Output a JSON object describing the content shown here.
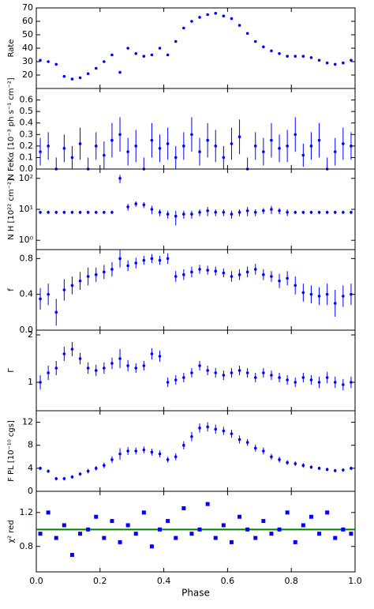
{
  "chart_data": [
    {
      "type": "scatter",
      "ylabel": "Rate",
      "color": "#0000ff",
      "marker": "circle",
      "x": [
        0.0125,
        0.0375,
        0.0625,
        0.0875,
        0.1125,
        0.1375,
        0.1625,
        0.1875,
        0.2125,
        0.2375,
        0.2625,
        0.2875,
        0.3125,
        0.3375,
        0.3625,
        0.3875,
        0.4125,
        0.4375,
        0.4625,
        0.4875,
        0.5125,
        0.5375,
        0.5625,
        0.5875,
        0.6125,
        0.6375,
        0.6625,
        0.6875,
        0.7125,
        0.7375,
        0.7625,
        0.7875,
        0.8125,
        0.8375,
        0.8625,
        0.8875,
        0.9125,
        0.9375,
        0.9625,
        0.9875
      ],
      "values": [
        31,
        30,
        28,
        19,
        17,
        18,
        21,
        25,
        30,
        35,
        22,
        40,
        36,
        34,
        35,
        40,
        35,
        45,
        55,
        60,
        63,
        65,
        66,
        64,
        62,
        57,
        51,
        45,
        41,
        38,
        36,
        34,
        34,
        34,
        33,
        31,
        29,
        28,
        29,
        31
      ],
      "xlim": [
        0,
        1
      ],
      "ylim": [
        10,
        70
      ],
      "yticks": [
        20,
        30,
        40,
        50,
        60,
        70
      ]
    },
    {
      "type": "scatter",
      "ylabel": "N FeKα [10⁻³ ph s⁻¹ cm⁻²]",
      "color": "#0000ff",
      "marker": "circle",
      "x": [
        0.0125,
        0.0375,
        0.0625,
        0.0875,
        0.1125,
        0.1375,
        0.1625,
        0.1875,
        0.2125,
        0.2375,
        0.2625,
        0.2875,
        0.3125,
        0.3375,
        0.3625,
        0.3875,
        0.4125,
        0.4375,
        0.4625,
        0.4875,
        0.5125,
        0.5375,
        0.5625,
        0.5875,
        0.6125,
        0.6375,
        0.6625,
        0.6875,
        0.7125,
        0.7375,
        0.7625,
        0.7875,
        0.8125,
        0.8375,
        0.8625,
        0.8875,
        0.9125,
        0.9375,
        0.9625,
        0.9875
      ],
      "values": [
        0.15,
        0.2,
        0.0,
        0.18,
        0.1,
        0.22,
        0.0,
        0.2,
        0.12,
        0.25,
        0.3,
        0.15,
        0.2,
        0.0,
        0.25,
        0.18,
        0.22,
        0.1,
        0.2,
        0.3,
        0.15,
        0.25,
        0.2,
        0.1,
        0.22,
        0.28,
        0.0,
        0.2,
        0.15,
        0.25,
        0.18,
        0.2,
        0.3,
        0.12,
        0.2,
        0.25,
        0.0,
        0.15,
        0.22,
        0.2
      ],
      "errors": [
        0.12,
        0.12,
        0.1,
        0.12,
        0.1,
        0.14,
        0.1,
        0.12,
        0.12,
        0.15,
        0.15,
        0.12,
        0.14,
        0.1,
        0.15,
        0.12,
        0.14,
        0.1,
        0.12,
        0.15,
        0.12,
        0.15,
        0.14,
        0.1,
        0.14,
        0.15,
        0.1,
        0.12,
        0.12,
        0.15,
        0.12,
        0.14,
        0.15,
        0.1,
        0.12,
        0.15,
        0.1,
        0.12,
        0.14,
        0.12
      ],
      "xlim": [
        0,
        1
      ],
      "ylim": [
        0,
        0.7
      ],
      "yticks": [
        {
          "value": 0,
          "label": "0.0"
        },
        0.1,
        0.2,
        0.3,
        0.4,
        0.5,
        0.6
      ]
    },
    {
      "type": "scatter",
      "ylabel": "N H [10²² cm⁻²]",
      "color": "#0000ff",
      "marker": "circle",
      "log_y": true,
      "x": [
        0.0125,
        0.0375,
        0.0625,
        0.0875,
        0.1125,
        0.1375,
        0.1625,
        0.1875,
        0.2125,
        0.2375,
        0.2625,
        0.2875,
        0.3125,
        0.3375,
        0.3625,
        0.3875,
        0.4125,
        0.4375,
        0.4625,
        0.4875,
        0.5125,
        0.5375,
        0.5625,
        0.5875,
        0.6125,
        0.6375,
        0.6625,
        0.6875,
        0.7125,
        0.7375,
        0.7625,
        0.7875,
        0.8125,
        0.8375,
        0.8625,
        0.8875,
        0.9125,
        0.9375,
        0.9625,
        0.9875
      ],
      "values": [
        8,
        8,
        8,
        8,
        8,
        8,
        8,
        8,
        8,
        8,
        100,
        12,
        15,
        14,
        10,
        8,
        7,
        6,
        7,
        7,
        8,
        9,
        8,
        8,
        7,
        8,
        9,
        8,
        9,
        10,
        9,
        8,
        8,
        8,
        8,
        8,
        8,
        8,
        8,
        8
      ],
      "errors": [
        1,
        1,
        1,
        1,
        1,
        1,
        1,
        1,
        1,
        1,
        30,
        3,
        3,
        3,
        3,
        2,
        2,
        3,
        2,
        2,
        2,
        3,
        2,
        2,
        2,
        2,
        3,
        2,
        2,
        3,
        2,
        2,
        1,
        1,
        1,
        1,
        1,
        1,
        1,
        1
      ],
      "xlim": [
        0,
        1
      ],
      "ylim": [
        0.5,
        200
      ],
      "yticks": [
        {
          "value": 1,
          "label": "10⁰"
        },
        {
          "value": 10,
          "label": "10¹"
        },
        {
          "value": 100,
          "label": "10²"
        }
      ]
    },
    {
      "type": "scatter",
      "ylabel": "f",
      "color": "#0000ff",
      "marker": "circle",
      "x": [
        0.0125,
        0.0375,
        0.0625,
        0.0875,
        0.1125,
        0.1375,
        0.1625,
        0.1875,
        0.2125,
        0.2375,
        0.2625,
        0.2875,
        0.3125,
        0.3375,
        0.3625,
        0.3875,
        0.4125,
        0.4375,
        0.4625,
        0.4875,
        0.5125,
        0.5375,
        0.5625,
        0.5875,
        0.6125,
        0.6375,
        0.6625,
        0.6875,
        0.7125,
        0.7375,
        0.7625,
        0.7875,
        0.8125,
        0.8375,
        0.8625,
        0.8875,
        0.9125,
        0.9375,
        0.9625,
        0.9875
      ],
      "values": [
        0.35,
        0.4,
        0.2,
        0.45,
        0.5,
        0.55,
        0.6,
        0.62,
        0.65,
        0.68,
        0.8,
        0.72,
        0.75,
        0.78,
        0.8,
        0.78,
        0.8,
        0.6,
        0.62,
        0.65,
        0.68,
        0.67,
        0.66,
        0.64,
        0.6,
        0.62,
        0.65,
        0.68,
        0.62,
        0.6,
        0.55,
        0.58,
        0.5,
        0.42,
        0.4,
        0.38,
        0.4,
        0.3,
        0.38,
        0.4
      ],
      "errors": [
        0.12,
        0.12,
        0.15,
        0.12,
        0.1,
        0.1,
        0.1,
        0.08,
        0.08,
        0.08,
        0.1,
        0.06,
        0.06,
        0.05,
        0.05,
        0.05,
        0.06,
        0.06,
        0.06,
        0.06,
        0.05,
        0.05,
        0.05,
        0.05,
        0.06,
        0.06,
        0.06,
        0.06,
        0.06,
        0.06,
        0.08,
        0.08,
        0.1,
        0.1,
        0.1,
        0.1,
        0.12,
        0.15,
        0.12,
        0.12
      ],
      "xlim": [
        0,
        1
      ],
      "ylim": [
        0,
        0.9
      ],
      "yticks": [
        {
          "value": 0,
          "label": "0.0"
        },
        0.4,
        0.8
      ]
    },
    {
      "type": "scatter",
      "ylabel": "Γ",
      "color": "#0000ff",
      "marker": "circle",
      "x": [
        0.0125,
        0.0375,
        0.0625,
        0.0875,
        0.1125,
        0.1375,
        0.1625,
        0.1875,
        0.2125,
        0.2375,
        0.2625,
        0.2875,
        0.3125,
        0.3375,
        0.3625,
        0.3875,
        0.4125,
        0.4375,
        0.4625,
        0.4875,
        0.5125,
        0.5375,
        0.5625,
        0.5875,
        0.6125,
        0.6375,
        0.6625,
        0.6875,
        0.7125,
        0.7375,
        0.7625,
        0.7875,
        0.8125,
        0.8375,
        0.8625,
        0.8875,
        0.9125,
        0.9375,
        0.9625,
        0.9875
      ],
      "values": [
        1.0,
        1.2,
        1.3,
        1.6,
        1.7,
        1.5,
        1.3,
        1.25,
        1.3,
        1.4,
        1.5,
        1.35,
        1.3,
        1.35,
        1.6,
        1.55,
        1.0,
        1.05,
        1.1,
        1.2,
        1.35,
        1.25,
        1.2,
        1.15,
        1.2,
        1.25,
        1.2,
        1.1,
        1.2,
        1.15,
        1.1,
        1.05,
        1.0,
        1.1,
        1.05,
        1.0,
        1.1,
        1.0,
        0.95,
        1.0
      ],
      "errors": [
        0.15,
        0.15,
        0.15,
        0.15,
        0.15,
        0.12,
        0.12,
        0.12,
        0.12,
        0.12,
        0.2,
        0.12,
        0.1,
        0.1,
        0.12,
        0.12,
        0.1,
        0.1,
        0.1,
        0.1,
        0.1,
        0.1,
        0.1,
        0.1,
        0.1,
        0.1,
        0.1,
        0.1,
        0.1,
        0.1,
        0.1,
        0.1,
        0.1,
        0.1,
        0.1,
        0.12,
        0.12,
        0.12,
        0.12,
        0.12
      ],
      "xlim": [
        0,
        1
      ],
      "ylim": [
        0.4,
        2.1
      ],
      "yticks": [
        1,
        2
      ]
    },
    {
      "type": "scatter",
      "ylabel": "F PL [10⁻¹⁰ cgs]",
      "color": "#0000ff",
      "marker": "circle",
      "x": [
        0.0125,
        0.0375,
        0.0625,
        0.0875,
        0.1125,
        0.1375,
        0.1625,
        0.1875,
        0.2125,
        0.2375,
        0.2625,
        0.2875,
        0.3125,
        0.3375,
        0.3625,
        0.3875,
        0.4125,
        0.4375,
        0.4625,
        0.4875,
        0.5125,
        0.5375,
        0.5625,
        0.5875,
        0.6125,
        0.6375,
        0.6625,
        0.6875,
        0.7125,
        0.7375,
        0.7625,
        0.7875,
        0.8125,
        0.8375,
        0.8625,
        0.8875,
        0.9125,
        0.9375,
        0.9625,
        0.9875
      ],
      "values": [
        4.0,
        3.5,
        2.2,
        2.2,
        2.5,
        3.0,
        3.5,
        4.0,
        4.5,
        5.5,
        6.5,
        7.0,
        7.0,
        7.2,
        6.8,
        6.5,
        5.5,
        6.0,
        8.0,
        9.5,
        11.0,
        11.2,
        10.8,
        10.5,
        10.0,
        9.0,
        8.5,
        7.5,
        7.0,
        6.0,
        5.5,
        5.0,
        4.8,
        4.5,
        4.2,
        4.0,
        3.8,
        3.6,
        3.7,
        4.0
      ],
      "errors": [
        0.3,
        0.3,
        0.3,
        0.3,
        0.3,
        0.3,
        0.4,
        0.4,
        0.5,
        0.6,
        1.0,
        0.7,
        0.6,
        0.6,
        0.6,
        0.6,
        0.5,
        0.6,
        0.7,
        0.8,
        0.8,
        0.8,
        0.8,
        0.7,
        0.7,
        0.7,
        0.6,
        0.6,
        0.6,
        0.5,
        0.5,
        0.4,
        0.4,
        0.4,
        0.3,
        0.3,
        0.3,
        0.3,
        0.3,
        0.3
      ],
      "xlim": [
        0,
        1
      ],
      "ylim": [
        0,
        14
      ],
      "yticks": [
        0,
        4,
        8,
        12
      ]
    },
    {
      "type": "scatter",
      "ylabel": "χ² red",
      "xlabel": "Phase",
      "color": "#0000ff",
      "marker": "square",
      "x": [
        0.0125,
        0.0375,
        0.0625,
        0.0875,
        0.1125,
        0.1375,
        0.1625,
        0.1875,
        0.2125,
        0.2375,
        0.2625,
        0.2875,
        0.3125,
        0.3375,
        0.3625,
        0.3875,
        0.4125,
        0.4375,
        0.4625,
        0.4875,
        0.5125,
        0.5375,
        0.5625,
        0.5875,
        0.6125,
        0.6375,
        0.6625,
        0.6875,
        0.7125,
        0.7375,
        0.7625,
        0.7875,
        0.8125,
        0.8375,
        0.8625,
        0.8875,
        0.9125,
        0.9375,
        0.9625,
        0.9875
      ],
      "values": [
        0.95,
        1.2,
        0.9,
        1.05,
        0.7,
        0.95,
        1.0,
        1.15,
        0.9,
        1.1,
        0.85,
        1.05,
        0.95,
        1.2,
        0.8,
        1.0,
        1.1,
        0.9,
        1.25,
        0.95,
        1.0,
        1.3,
        0.9,
        1.05,
        0.85,
        1.15,
        1.0,
        0.9,
        1.1,
        0.95,
        1.0,
        1.2,
        0.85,
        1.05,
        1.15,
        0.95,
        1.2,
        0.9,
        1.0,
        0.95
      ],
      "reference": {
        "value": 1,
        "color": "#008000"
      },
      "xlim": [
        0,
        1
      ],
      "ylim": [
        0.5,
        1.45
      ],
      "yticks": [
        0.8,
        1.2
      ],
      "xticks": [
        {
          "value": 0,
          "label": "0.0"
        },
        0.2,
        0.4,
        0.6,
        0.8,
        {
          "value": 1,
          "label": "1.0"
        }
      ]
    }
  ]
}
